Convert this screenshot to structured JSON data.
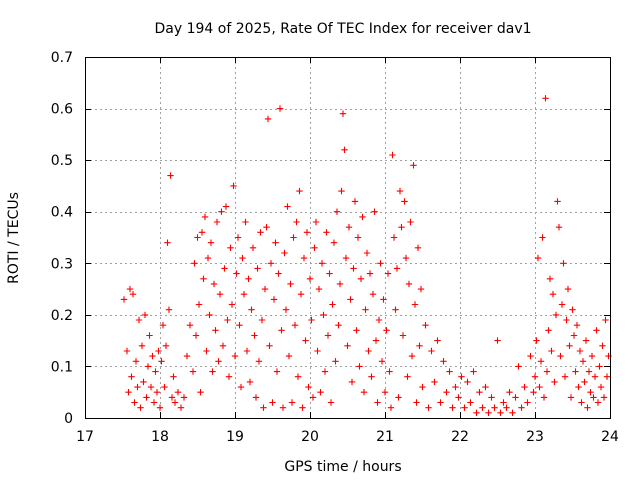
{
  "chart_data": {
    "type": "scatter",
    "title": "Day 194 of 2025, Rate Of TEC Index for receiver dav1",
    "xlabel": "GPS time / hours",
    "ylabel": "ROTI / TECUs",
    "xlim": [
      17,
      24
    ],
    "ylim": [
      0,
      0.7
    ],
    "xticks": [
      "17",
      "18",
      "19",
      "20",
      "21",
      "22",
      "23",
      "24"
    ],
    "yticks": [
      "0",
      "0.1",
      "0.2",
      "0.3",
      "0.4",
      "0.5",
      "0.6",
      "0.7"
    ],
    "grid": true,
    "marker": "+",
    "color": "#ff0000",
    "series": [
      {
        "points": [
          [
            17.52,
            0.23
          ],
          [
            17.56,
            0.13
          ],
          [
            17.58,
            0.05
          ],
          [
            17.6,
            0.25
          ],
          [
            17.62,
            0.08
          ],
          [
            17.64,
            0.24
          ],
          [
            17.66,
            0.03
          ],
          [
            17.68,
            0.11
          ],
          [
            17.7,
            0.06
          ],
          [
            17.72,
            0.19
          ],
          [
            17.74,
            0.02
          ],
          [
            17.76,
            0.14
          ],
          [
            17.78,
            0.07
          ],
          [
            17.8,
            0.2
          ],
          [
            17.82,
            0.04
          ],
          [
            17.84,
            0.1
          ],
          [
            17.86,
            0.16
          ],
          [
            17.88,
            0.06
          ],
          [
            17.9,
            0.12
          ],
          [
            17.92,
            0.03
          ],
          [
            17.94,
            0.09
          ],
          [
            17.96,
            0.05
          ],
          [
            17.98,
            0.13
          ],
          [
            18.0,
            0.02
          ],
          [
            18.02,
            0.11
          ],
          [
            18.04,
            0.18
          ],
          [
            18.06,
            0.06
          ],
          [
            18.08,
            0.14
          ],
          [
            18.1,
            0.34
          ],
          [
            18.12,
            0.21
          ],
          [
            18.14,
            0.47
          ],
          [
            18.16,
            0.04
          ],
          [
            18.18,
            0.08
          ],
          [
            18.2,
            0.03
          ],
          [
            18.24,
            0.05
          ],
          [
            18.28,
            0.02
          ],
          [
            18.32,
            0.04
          ],
          [
            18.36,
            0.12
          ],
          [
            18.4,
            0.18
          ],
          [
            18.44,
            0.09
          ],
          [
            18.46,
            0.3
          ],
          [
            18.48,
            0.16
          ],
          [
            18.5,
            0.35
          ],
          [
            18.52,
            0.22
          ],
          [
            18.54,
            0.05
          ],
          [
            18.56,
            0.36
          ],
          [
            18.58,
            0.27
          ],
          [
            18.6,
            0.39
          ],
          [
            18.62,
            0.13
          ],
          [
            18.64,
            0.31
          ],
          [
            18.66,
            0.2
          ],
          [
            18.68,
            0.34
          ],
          [
            18.7,
            0.09
          ],
          [
            18.72,
            0.26
          ],
          [
            18.74,
            0.17
          ],
          [
            18.76,
            0.38
          ],
          [
            18.78,
            0.11
          ],
          [
            18.8,
            0.24
          ],
          [
            18.82,
            0.4
          ],
          [
            18.84,
            0.14
          ],
          [
            18.86,
            0.29
          ],
          [
            18.88,
            0.41
          ],
          [
            18.9,
            0.19
          ],
          [
            18.92,
            0.08
          ],
          [
            18.94,
            0.33
          ],
          [
            18.96,
            0.22
          ],
          [
            18.98,
            0.45
          ],
          [
            19.0,
            0.12
          ],
          [
            19.02,
            0.28
          ],
          [
            19.04,
            0.35
          ],
          [
            19.06,
            0.18
          ],
          [
            19.08,
            0.06
          ],
          [
            19.1,
            0.31
          ],
          [
            19.12,
            0.24
          ],
          [
            19.14,
            0.38
          ],
          [
            19.16,
            0.13
          ],
          [
            19.18,
            0.27
          ],
          [
            19.2,
            0.07
          ],
          [
            19.22,
            0.21
          ],
          [
            19.24,
            0.33
          ],
          [
            19.26,
            0.16
          ],
          [
            19.28,
            0.04
          ],
          [
            19.3,
            0.29
          ],
          [
            19.32,
            0.11
          ],
          [
            19.34,
            0.36
          ],
          [
            19.36,
            0.19
          ],
          [
            19.38,
            0.02
          ],
          [
            19.4,
            0.25
          ],
          [
            19.42,
            0.37
          ],
          [
            19.44,
            0.58
          ],
          [
            19.46,
            0.14
          ],
          [
            19.48,
            0.3
          ],
          [
            19.5,
            0.03
          ],
          [
            19.52,
            0.23
          ],
          [
            19.54,
            0.34
          ],
          [
            19.56,
            0.09
          ],
          [
            19.58,
            0.28
          ],
          [
            19.6,
            0.6
          ],
          [
            19.62,
            0.17
          ],
          [
            19.64,
            0.02
          ],
          [
            19.66,
            0.32
          ],
          [
            19.68,
            0.21
          ],
          [
            19.7,
            0.41
          ],
          [
            19.72,
            0.12
          ],
          [
            19.74,
            0.26
          ],
          [
            19.76,
            0.03
          ],
          [
            19.78,
            0.35
          ],
          [
            19.8,
            0.18
          ],
          [
            19.82,
            0.38
          ],
          [
            19.84,
            0.08
          ],
          [
            19.86,
            0.44
          ],
          [
            19.88,
            0.24
          ],
          [
            19.9,
            0.02
          ],
          [
            19.92,
            0.31
          ],
          [
            19.94,
            0.15
          ],
          [
            19.96,
            0.36
          ],
          [
            19.98,
            0.06
          ],
          [
            20.0,
            0.27
          ],
          [
            20.02,
            0.19
          ],
          [
            20.04,
            0.04
          ],
          [
            20.06,
            0.33
          ],
          [
            20.08,
            0.38
          ],
          [
            20.1,
            0.13
          ],
          [
            20.12,
            0.25
          ],
          [
            20.14,
            0.05
          ],
          [
            20.16,
            0.3
          ],
          [
            20.18,
            0.2
          ],
          [
            20.2,
            0.09
          ],
          [
            20.22,
            0.36
          ],
          [
            20.24,
            0.16
          ],
          [
            20.26,
            0.28
          ],
          [
            20.28,
            0.03
          ],
          [
            20.3,
            0.22
          ],
          [
            20.32,
            0.34
          ],
          [
            20.34,
            0.11
          ],
          [
            20.36,
            0.4
          ],
          [
            20.38,
            0.18
          ],
          [
            20.4,
            0.26
          ],
          [
            20.42,
            0.44
          ],
          [
            20.44,
            0.59
          ],
          [
            20.46,
            0.52
          ],
          [
            20.48,
            0.31
          ],
          [
            20.5,
            0.14
          ],
          [
            20.52,
            0.37
          ],
          [
            20.54,
            0.23
          ],
          [
            20.56,
            0.07
          ],
          [
            20.58,
            0.29
          ],
          [
            20.6,
            0.42
          ],
          [
            20.62,
            0.17
          ],
          [
            20.64,
            0.35
          ],
          [
            20.66,
            0.1
          ],
          [
            20.68,
            0.27
          ],
          [
            20.7,
            0.39
          ],
          [
            20.72,
            0.05
          ],
          [
            20.74,
            0.21
          ],
          [
            20.76,
            0.32
          ],
          [
            20.78,
            0.13
          ],
          [
            20.8,
            0.28
          ],
          [
            20.82,
            0.08
          ],
          [
            20.84,
            0.24
          ],
          [
            20.86,
            0.4
          ],
          [
            20.88,
            0.15
          ],
          [
            20.9,
            0.03
          ],
          [
            20.92,
            0.19
          ],
          [
            20.94,
            0.3
          ],
          [
            20.96,
            0.11
          ],
          [
            20.98,
            0.23
          ],
          [
            21.0,
            0.05
          ],
          [
            21.02,
            0.17
          ],
          [
            21.04,
            0.28
          ],
          [
            21.06,
            0.09
          ],
          [
            21.08,
            0.02
          ],
          [
            21.1,
            0.51
          ],
          [
            21.12,
            0.35
          ],
          [
            21.14,
            0.21
          ],
          [
            21.16,
            0.29
          ],
          [
            21.18,
            0.04
          ],
          [
            21.2,
            0.44
          ],
          [
            21.22,
            0.37
          ],
          [
            21.24,
            0.16
          ],
          [
            21.26,
            0.42
          ],
          [
            21.28,
            0.31
          ],
          [
            21.3,
            0.08
          ],
          [
            21.32,
            0.26
          ],
          [
            21.34,
            0.38
          ],
          [
            21.36,
            0.12
          ],
          [
            21.38,
            0.49
          ],
          [
            21.4,
            0.22
          ],
          [
            21.42,
            0.03
          ],
          [
            21.44,
            0.33
          ],
          [
            21.46,
            0.14
          ],
          [
            21.48,
            0.25
          ],
          [
            21.5,
            0.06
          ],
          [
            21.54,
            0.18
          ],
          [
            21.58,
            0.02
          ],
          [
            21.62,
            0.13
          ],
          [
            21.66,
            0.07
          ],
          [
            21.7,
            0.15
          ],
          [
            21.74,
            0.03
          ],
          [
            21.78,
            0.11
          ],
          [
            21.82,
            0.05
          ],
          [
            21.86,
            0.09
          ],
          [
            21.9,
            0.02
          ],
          [
            21.94,
            0.06
          ],
          [
            21.98,
            0.04
          ],
          [
            22.02,
            0.08
          ],
          [
            22.06,
            0.02
          ],
          [
            22.1,
            0.07
          ],
          [
            22.14,
            0.03
          ],
          [
            22.18,
            0.09
          ],
          [
            22.22,
            0.01
          ],
          [
            22.26,
            0.05
          ],
          [
            22.3,
            0.02
          ],
          [
            22.34,
            0.06
          ],
          [
            22.38,
            0.01
          ],
          [
            22.42,
            0.04
          ],
          [
            22.46,
            0.02
          ],
          [
            22.5,
            0.15
          ],
          [
            22.54,
            0.01
          ],
          [
            22.58,
            0.03
          ],
          [
            22.62,
            0.02
          ],
          [
            22.66,
            0.05
          ],
          [
            22.7,
            0.01
          ],
          [
            22.74,
            0.04
          ],
          [
            22.78,
            0.1
          ],
          [
            22.82,
            0.02
          ],
          [
            22.86,
            0.06
          ],
          [
            22.9,
            0.03
          ],
          [
            22.94,
            0.12
          ],
          [
            22.98,
            0.05
          ],
          [
            23.0,
            0.08
          ],
          [
            23.02,
            0.15
          ],
          [
            23.04,
            0.31
          ],
          [
            23.06,
            0.06
          ],
          [
            23.08,
            0.11
          ],
          [
            23.1,
            0.35
          ],
          [
            23.12,
            0.04
          ],
          [
            23.14,
            0.62
          ],
          [
            23.16,
            0.09
          ],
          [
            23.18,
            0.17
          ],
          [
            23.2,
            0.27
          ],
          [
            23.22,
            0.13
          ],
          [
            23.24,
            0.24
          ],
          [
            23.26,
            0.07
          ],
          [
            23.28,
            0.2
          ],
          [
            23.3,
            0.42
          ],
          [
            23.32,
            0.37
          ],
          [
            23.34,
            0.12
          ],
          [
            23.36,
            0.22
          ],
          [
            23.38,
            0.3
          ],
          [
            23.4,
            0.08
          ],
          [
            23.42,
            0.19
          ],
          [
            23.44,
            0.25
          ],
          [
            23.46,
            0.14
          ],
          [
            23.48,
            0.04
          ],
          [
            23.5,
            0.21
          ],
          [
            23.52,
            0.16
          ],
          [
            23.54,
            0.09
          ],
          [
            23.56,
            0.18
          ],
          [
            23.58,
            0.06
          ],
          [
            23.6,
            0.13
          ],
          [
            23.62,
            0.03
          ],
          [
            23.64,
            0.11
          ],
          [
            23.66,
            0.07
          ],
          [
            23.68,
            0.15
          ],
          [
            23.7,
            0.02
          ],
          [
            23.72,
            0.09
          ],
          [
            23.74,
            0.05
          ],
          [
            23.76,
            0.12
          ],
          [
            23.78,
            0.04
          ],
          [
            23.8,
            0.08
          ],
          [
            23.82,
            0.17
          ],
          [
            23.84,
            0.03
          ],
          [
            23.86,
            0.1
          ],
          [
            23.88,
            0.06
          ],
          [
            23.9,
            0.14
          ],
          [
            23.92,
            0.04
          ],
          [
            23.94,
            0.19
          ],
          [
            23.96,
            0.08
          ],
          [
            23.98,
            0.12
          ]
        ]
      }
    ]
  }
}
